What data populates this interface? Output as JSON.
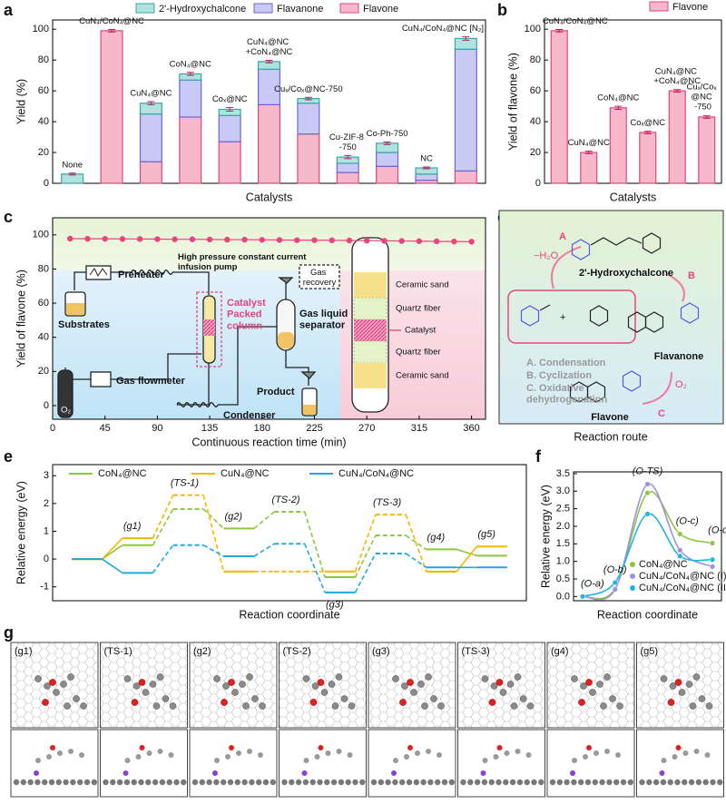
{
  "panel_letters": [
    "a",
    "b",
    "c",
    "d",
    "e",
    "f",
    "g"
  ],
  "chart_data": [
    {
      "type": "bar",
      "stacked": true,
      "xlabel": "Catalysts",
      "ylabel": "Yield (%)",
      "categories": [
        "None",
        "CuN₄/CoN₄@NC",
        "CuN₄@NC",
        "CoN₄@NC",
        "Coₓ@NC",
        "CuN₄@NC\n+CoN₄@NC",
        "Cuₓ/Coₓ@NC-750",
        "Cu-ZIF-8\n-750",
        "Co-Ph-750",
        "NC",
        "CuN₄/CoN₄@NC [N₂]"
      ],
      "series": [
        {
          "name": "2'-Hydroxychalcone",
          "color": "#aee3df",
          "edge": "#3aa99f",
          "values": [
            6,
            0,
            7,
            4,
            4,
            5,
            3,
            4,
            6,
            4,
            7
          ]
        },
        {
          "name": "Flavanone",
          "color": "#c9c9f6",
          "edge": "#6767dd",
          "values": [
            0,
            0,
            31,
            24,
            17,
            23,
            20,
            6,
            9,
            4,
            79
          ]
        },
        {
          "name": "Flavone",
          "color": "#f8b8cc",
          "edge": "#e0457b",
          "values": [
            0,
            99,
            14,
            43,
            27,
            51,
            32,
            7,
            11,
            2,
            8
          ]
        }
      ],
      "errors": [
        0.6,
        0.8,
        1,
        1,
        1.2,
        0.8,
        0.8,
        1,
        0.8,
        0.6,
        1.2
      ],
      "ylim": [
        0,
        106
      ],
      "yticks": [
        0,
        20,
        40,
        60,
        80,
        100
      ]
    },
    {
      "type": "bar",
      "xlabel": "Catalysts",
      "ylabel": "Yield of flavone (%)",
      "categories": [
        "CuN₄/CoN₄@NC",
        "CuN₄@NC",
        "CoN₄@NC",
        "Coₓ@NC",
        "CuN₄@NC\n+CoN₄@NC",
        "Cuₓ/Coₓ\n@NC\n-750"
      ],
      "series": [
        {
          "name": "Flavone",
          "color": "#f8b8cc",
          "edge": "#e0457b",
          "values": [
            99,
            20,
            49,
            33,
            60,
            43
          ]
        }
      ],
      "errors": [
        0.8,
        0.8,
        1,
        0.8,
        0.8,
        0.8
      ],
      "ylim": [
        0,
        106
      ],
      "yticks": [
        0,
        20,
        40,
        60,
        80,
        100
      ]
    },
    {
      "type": "line",
      "xlabel": "Continuous reaction time (min)",
      "ylabel": "Yield of flavone (%)",
      "x": [
        15,
        30,
        45,
        60,
        75,
        90,
        105,
        120,
        135,
        150,
        165,
        180,
        195,
        210,
        225,
        240,
        255,
        270,
        285,
        300,
        315,
        330,
        345,
        360
      ],
      "series": [
        {
          "name": "Flavone",
          "color": "#e8457f",
          "values": [
            97.8,
            97.7,
            97.7,
            97.6,
            97.6,
            97.5,
            97.4,
            97.4,
            97.3,
            97.2,
            97.2,
            97.1,
            97.0,
            96.9,
            96.9,
            96.8,
            96.7,
            96.6,
            96.5,
            96.4,
            96.3,
            96.2,
            96.1,
            96.0
          ]
        }
      ],
      "xlim": [
        0,
        372
      ],
      "xticks": [
        0,
        45,
        90,
        135,
        180,
        225,
        270,
        315,
        360
      ],
      "ylim": [
        -8,
        110
      ],
      "yticks": [
        0,
        20,
        40,
        60,
        80,
        100
      ]
    },
    {
      "type": "energy",
      "xlabel": "Reaction coordinate",
      "ylabel": "Relative energy (eV)",
      "categories": [
        null,
        "(g1)",
        "(TS-1)",
        "(g2)",
        "(TS-2)",
        "(g3)",
        "(TS-3)",
        "(g4)",
        "(g5)"
      ],
      "styles": [
        "solid",
        "solid",
        "dashed",
        "solid",
        "dashed",
        "solid",
        "dashed",
        "solid",
        "solid"
      ],
      "series": [
        {
          "name": "CoN₄@NC",
          "color": "#8dc63f",
          "values": [
            0,
            0.5,
            1.8,
            1.1,
            1.7,
            -0.65,
            0.85,
            0.35,
            0.12
          ]
        },
        {
          "name": "CuN₄@NC",
          "color": "#f7b500",
          "values": [
            0,
            0.75,
            2.3,
            -0.45,
            -0.45,
            -0.45,
            1.6,
            -0.45,
            0.45
          ]
        },
        {
          "name": "CuN₄/CoN₄@NC",
          "color": "#1ba9e1",
          "values": [
            0,
            -0.5,
            0.5,
            0.1,
            0.55,
            -1.2,
            0.2,
            -0.3,
            -0.3
          ]
        }
      ],
      "ylim": [
        -1.5,
        3.4
      ],
      "yticks": [
        -1,
        0,
        1,
        2,
        3
      ]
    },
    {
      "type": "curve",
      "xlabel": "Reaction coordinate",
      "ylabel": "Relative energy (eV)",
      "categories": [
        "(O-a)",
        "(O-b)",
        "(O-TS)",
        "(O-c)",
        "(O-d)"
      ],
      "series": [
        {
          "name": "CoN₄@NC",
          "color": "#8dc63f",
          "values": [
            0,
            0.22,
            2.95,
            1.78,
            1.52
          ]
        },
        {
          "name": "CuN₄/CoN₄@NC (I)",
          "color": "#9d90e2",
          "values": [
            0,
            0.2,
            3.2,
            1.32,
            0.85
          ]
        },
        {
          "name": "CuN₄/CoN₄@NC (II)",
          "color": "#1eb4e6",
          "values": [
            0,
            0.4,
            2.35,
            1.15,
            1.05
          ]
        }
      ],
      "ylim": [
        -0.12,
        3.55
      ],
      "yticks": [
        {
          "value": 0,
          "label": "0.0"
        },
        0.5,
        {
          "value": 1,
          "label": "1.0"
        },
        1.5,
        {
          "value": 2,
          "label": "2.0"
        },
        2.5,
        {
          "value": 3,
          "label": "3.0"
        },
        3.5
      ]
    }
  ],
  "diagram_c": {
    "preheater": "Preheater",
    "pump": "High pressure constant current\ninfusion pump",
    "substrates": "Substrates",
    "column": "Catalyst\nPacked\ncolumn",
    "gas_recovery": "Gas\nrecovery",
    "separator": "Gas liquid\nseparator",
    "flowmeter": "Gas flowmeter",
    "condenser": "Condenser",
    "product": "Product",
    "o2": "O₂",
    "layers": [
      "Ceramic sand",
      "Quartz fiber",
      "Catalyst",
      "Quartz fiber",
      "Ceramic sand"
    ]
  },
  "diagram_d": {
    "minus_h2o": "−H₂O",
    "step_a": "A",
    "step_b": "B",
    "step_c": "C",
    "chalcone": "2'-Hydroxychalcone",
    "flavanone": "Flavanone",
    "flavone": "Flavone",
    "o2": "O₂",
    "steps": [
      "A. Condensation",
      "B. Cyclization",
      "C. Oxidative\ndehydrogenation"
    ],
    "caption": "Reaction route"
  },
  "panel_g": {
    "labels": [
      "(g1)",
      "(TS-1)",
      "(g2)",
      "(TS-2)",
      "(g3)",
      "(TS-3)",
      "(g4)",
      "(g5)"
    ]
  }
}
